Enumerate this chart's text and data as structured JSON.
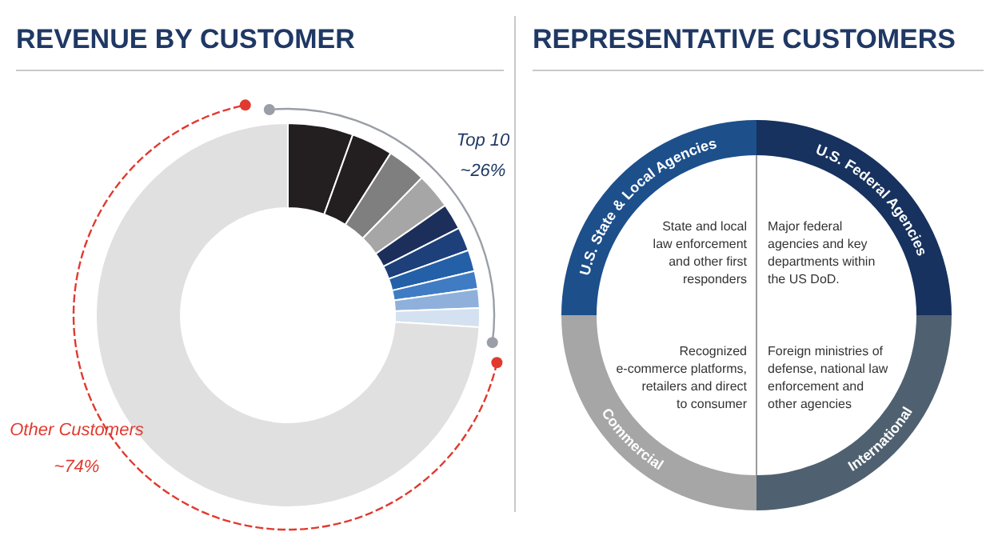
{
  "chart_data": [
    {
      "type": "donut",
      "title": "REVENUE BY CUSTOMER",
      "categories": [
        null,
        null,
        null,
        null,
        null,
        null,
        null,
        null,
        null,
        null,
        null
      ],
      "values": [
        5.5,
        3.5,
        3.3,
        3,
        2.2,
        2,
        1.8,
        1.5,
        1.6,
        1.6,
        74
      ],
      "colors": [
        "#231f20",
        "#231f20",
        "#7f7f7f",
        "#a6a6a6",
        "#1b2f5a",
        "#1d3f7a",
        "#2460a7",
        "#3f7cc4",
        "#8fb0db",
        "#d3e1f0",
        "#e0e0e0"
      ],
      "annotations": [
        "Top 10",
        "~26%",
        "Other Customers",
        "~74%"
      ]
    },
    {
      "type": "donut",
      "title": "REPRESENTATIVE CUSTOMERS",
      "categories": [
        "U.S. Federal Agencies",
        "International",
        "Commercial",
        "U.S. State & Local Agencies"
      ],
      "values": [
        25,
        25,
        25,
        25
      ],
      "colors": [
        "#17325e",
        "#4f6170",
        "#a6a6a6",
        "#1d4f8b"
      ],
      "annotations": [
        "Major federal\nagencies and key\ndepartments within\nthe US DoD.",
        "Foreign ministries of\ndefense, national law\nenforcement and\nother agencies",
        "Recognized\ne-commerce platforms,\nretailers and direct\nto consumer",
        "State and local\nlaw enforcement\nand other first\nresponders"
      ]
    }
  ]
}
